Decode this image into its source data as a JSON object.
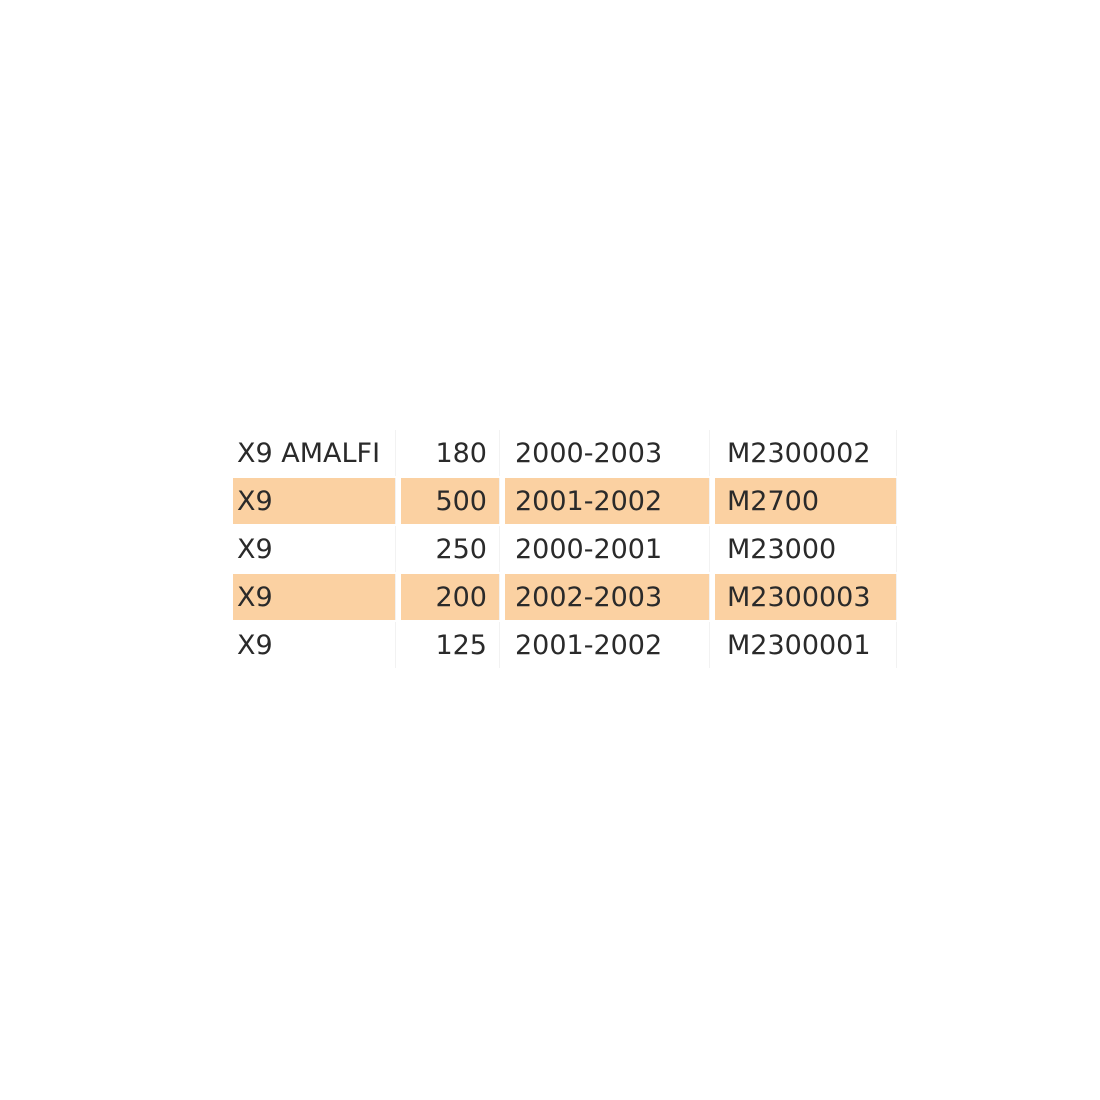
{
  "table": {
    "highlight_color": "#fbd1a2",
    "rows": [
      {
        "model": "X9 AMALFI",
        "cc": "180",
        "years": "2000-2003",
        "code": "M2300002",
        "highlighted": false
      },
      {
        "model": "X9",
        "cc": "500",
        "years": "2001-2002",
        "code": "M2700",
        "highlighted": true
      },
      {
        "model": "X9",
        "cc": "250",
        "years": "2000-2001",
        "code": "M23000",
        "highlighted": false
      },
      {
        "model": "X9",
        "cc": "200",
        "years": "2002-2003",
        "code": "M2300003",
        "highlighted": true
      },
      {
        "model": "X9",
        "cc": "125",
        "years": "2001-2002",
        "code": "M2300001",
        "highlighted": false
      }
    ]
  }
}
